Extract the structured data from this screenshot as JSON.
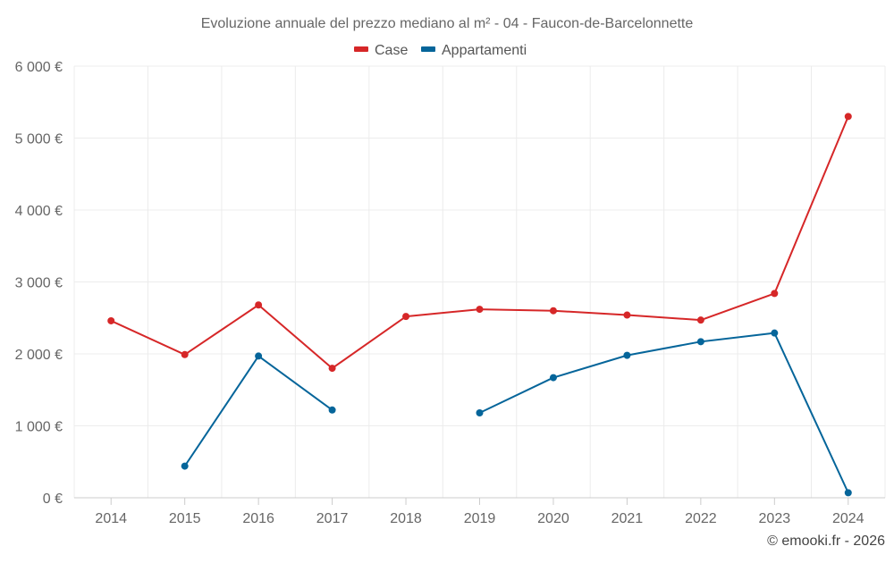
{
  "chart_data": {
    "type": "line",
    "title": "Evoluzione annuale del prezzo mediano al m² - 04 - Faucon-de-Barcelonnette",
    "xlabel": "",
    "ylabel": "",
    "categories": [
      "2014",
      "2015",
      "2016",
      "2017",
      "2018",
      "2019",
      "2020",
      "2021",
      "2022",
      "2023",
      "2024"
    ],
    "ylim": [
      0,
      6000
    ],
    "yticks": [
      0,
      1000,
      2000,
      3000,
      4000,
      5000,
      6000
    ],
    "ytick_labels": [
      "0 €",
      "1 000 €",
      "2 000 €",
      "3 000 €",
      "4 000 €",
      "5 000 €",
      "6 000 €"
    ],
    "grid": true,
    "legend_position": "top-center",
    "series": [
      {
        "name": "Case",
        "color": "#d62728",
        "values": [
          2460,
          1990,
          2680,
          1800,
          2520,
          2620,
          2600,
          2540,
          2470,
          2840,
          5300
        ]
      },
      {
        "name": "Appartamenti",
        "color": "#05659a",
        "values": [
          null,
          440,
          1970,
          1220,
          null,
          1180,
          1670,
          1980,
          2170,
          2290,
          70
        ]
      }
    ]
  },
  "credit": "© emooki.fr - 2026"
}
